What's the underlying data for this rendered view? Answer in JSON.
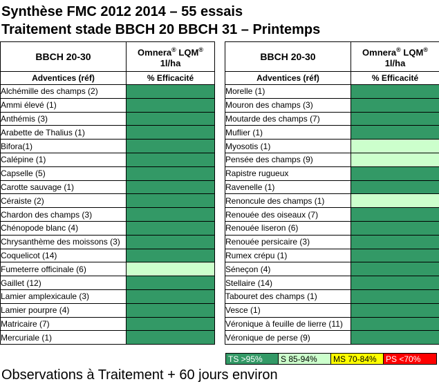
{
  "title_line1": "Synthèse FMC 2012 2014 – 55 essais",
  "title_line2": "Traitement stade BBCH 20 BBCH 31 – Printemps",
  "colors": {
    "TS": "#339966",
    "S": "#ccffcc",
    "MS": "#ffff00",
    "PS": "#ff0000"
  },
  "table_header": {
    "stage": "BBCH 20-30",
    "product_name": "Omnera",
    "product_reg1": "®",
    "product_lqm": " LQM",
    "product_reg2": "®",
    "dose": "1l/ha",
    "col1": "Adventices (réf)",
    "col2": "% Efficacité"
  },
  "left_rows": [
    {
      "name": "Alchémille des champs (2)",
      "rating": "TS"
    },
    {
      "name": "Ammi élevé (1)",
      "rating": "TS"
    },
    {
      "name": "Anthémis (3)",
      "rating": "TS"
    },
    {
      "name": "Arabette de Thalius (1)",
      "rating": "TS"
    },
    {
      "name": "Bifora(1)",
      "rating": "TS"
    },
    {
      "name": "Calépine (1)",
      "rating": "TS"
    },
    {
      "name": "Capselle (5)",
      "rating": "TS"
    },
    {
      "name": "Carotte sauvage (1)",
      "rating": "TS"
    },
    {
      "name": "Céraiste (2)",
      "rating": "TS"
    },
    {
      "name": "Chardon des champs (3)",
      "rating": "TS"
    },
    {
      "name": "Chénopode blanc (4)",
      "rating": "TS"
    },
    {
      "name": "Chrysanthème des moissons (3)",
      "rating": "TS"
    },
    {
      "name": "Coquelicot (14)",
      "rating": "TS"
    },
    {
      "name": "Fumeterre officinale (6)",
      "rating": "S"
    },
    {
      "name": "Gaillet (12)",
      "rating": "TS"
    },
    {
      "name": "Lamier amplexicaule (3)",
      "rating": "TS"
    },
    {
      "name": "Lamier pourpre (4)",
      "rating": "TS"
    },
    {
      "name": "Matricaire (7)",
      "rating": "TS"
    },
    {
      "name": "Mercuriale (1)",
      "rating": "TS"
    }
  ],
  "right_rows": [
    {
      "name": "Morelle (1)",
      "rating": "TS"
    },
    {
      "name": "Mouron des champs (3)",
      "rating": "TS"
    },
    {
      "name": "Moutarde des champs (7)",
      "rating": "TS"
    },
    {
      "name": "Muflier (1)",
      "rating": "TS"
    },
    {
      "name": "Myosotis (1)",
      "rating": "S"
    },
    {
      "name": "Pensée des champs (9)",
      "rating": "S"
    },
    {
      "name": "Rapistre rugueux",
      "rating": "TS"
    },
    {
      "name": "Ravenelle (1)",
      "rating": "TS"
    },
    {
      "name": "Renoncule des champs (1)",
      "rating": "S"
    },
    {
      "name": "Renouée des oiseaux (7)",
      "rating": "TS"
    },
    {
      "name": "Renouée liseron (6)",
      "rating": "TS"
    },
    {
      "name": "Renouée persicaire (3)",
      "rating": "TS"
    },
    {
      "name": "Rumex crépu (1)",
      "rating": "TS"
    },
    {
      "name": "Séneçon (4)",
      "rating": "TS"
    },
    {
      "name": "Stellaire (14)",
      "rating": "TS"
    },
    {
      "name": "Tabouret des champs (1)",
      "rating": "TS"
    },
    {
      "name": "Vesce (1)",
      "rating": "TS"
    },
    {
      "name": "Véronique à feuille de lierre (11)",
      "rating": "TS"
    },
    {
      "name": "Véronique de perse (9)",
      "rating": "TS"
    }
  ],
  "legend": {
    "ts": "TS >95%",
    "s": "S 85-94%",
    "ms": "MS 70-84%",
    "ps": "PS <70%"
  },
  "footer": "Observations à Traitement + 60 jours environ"
}
